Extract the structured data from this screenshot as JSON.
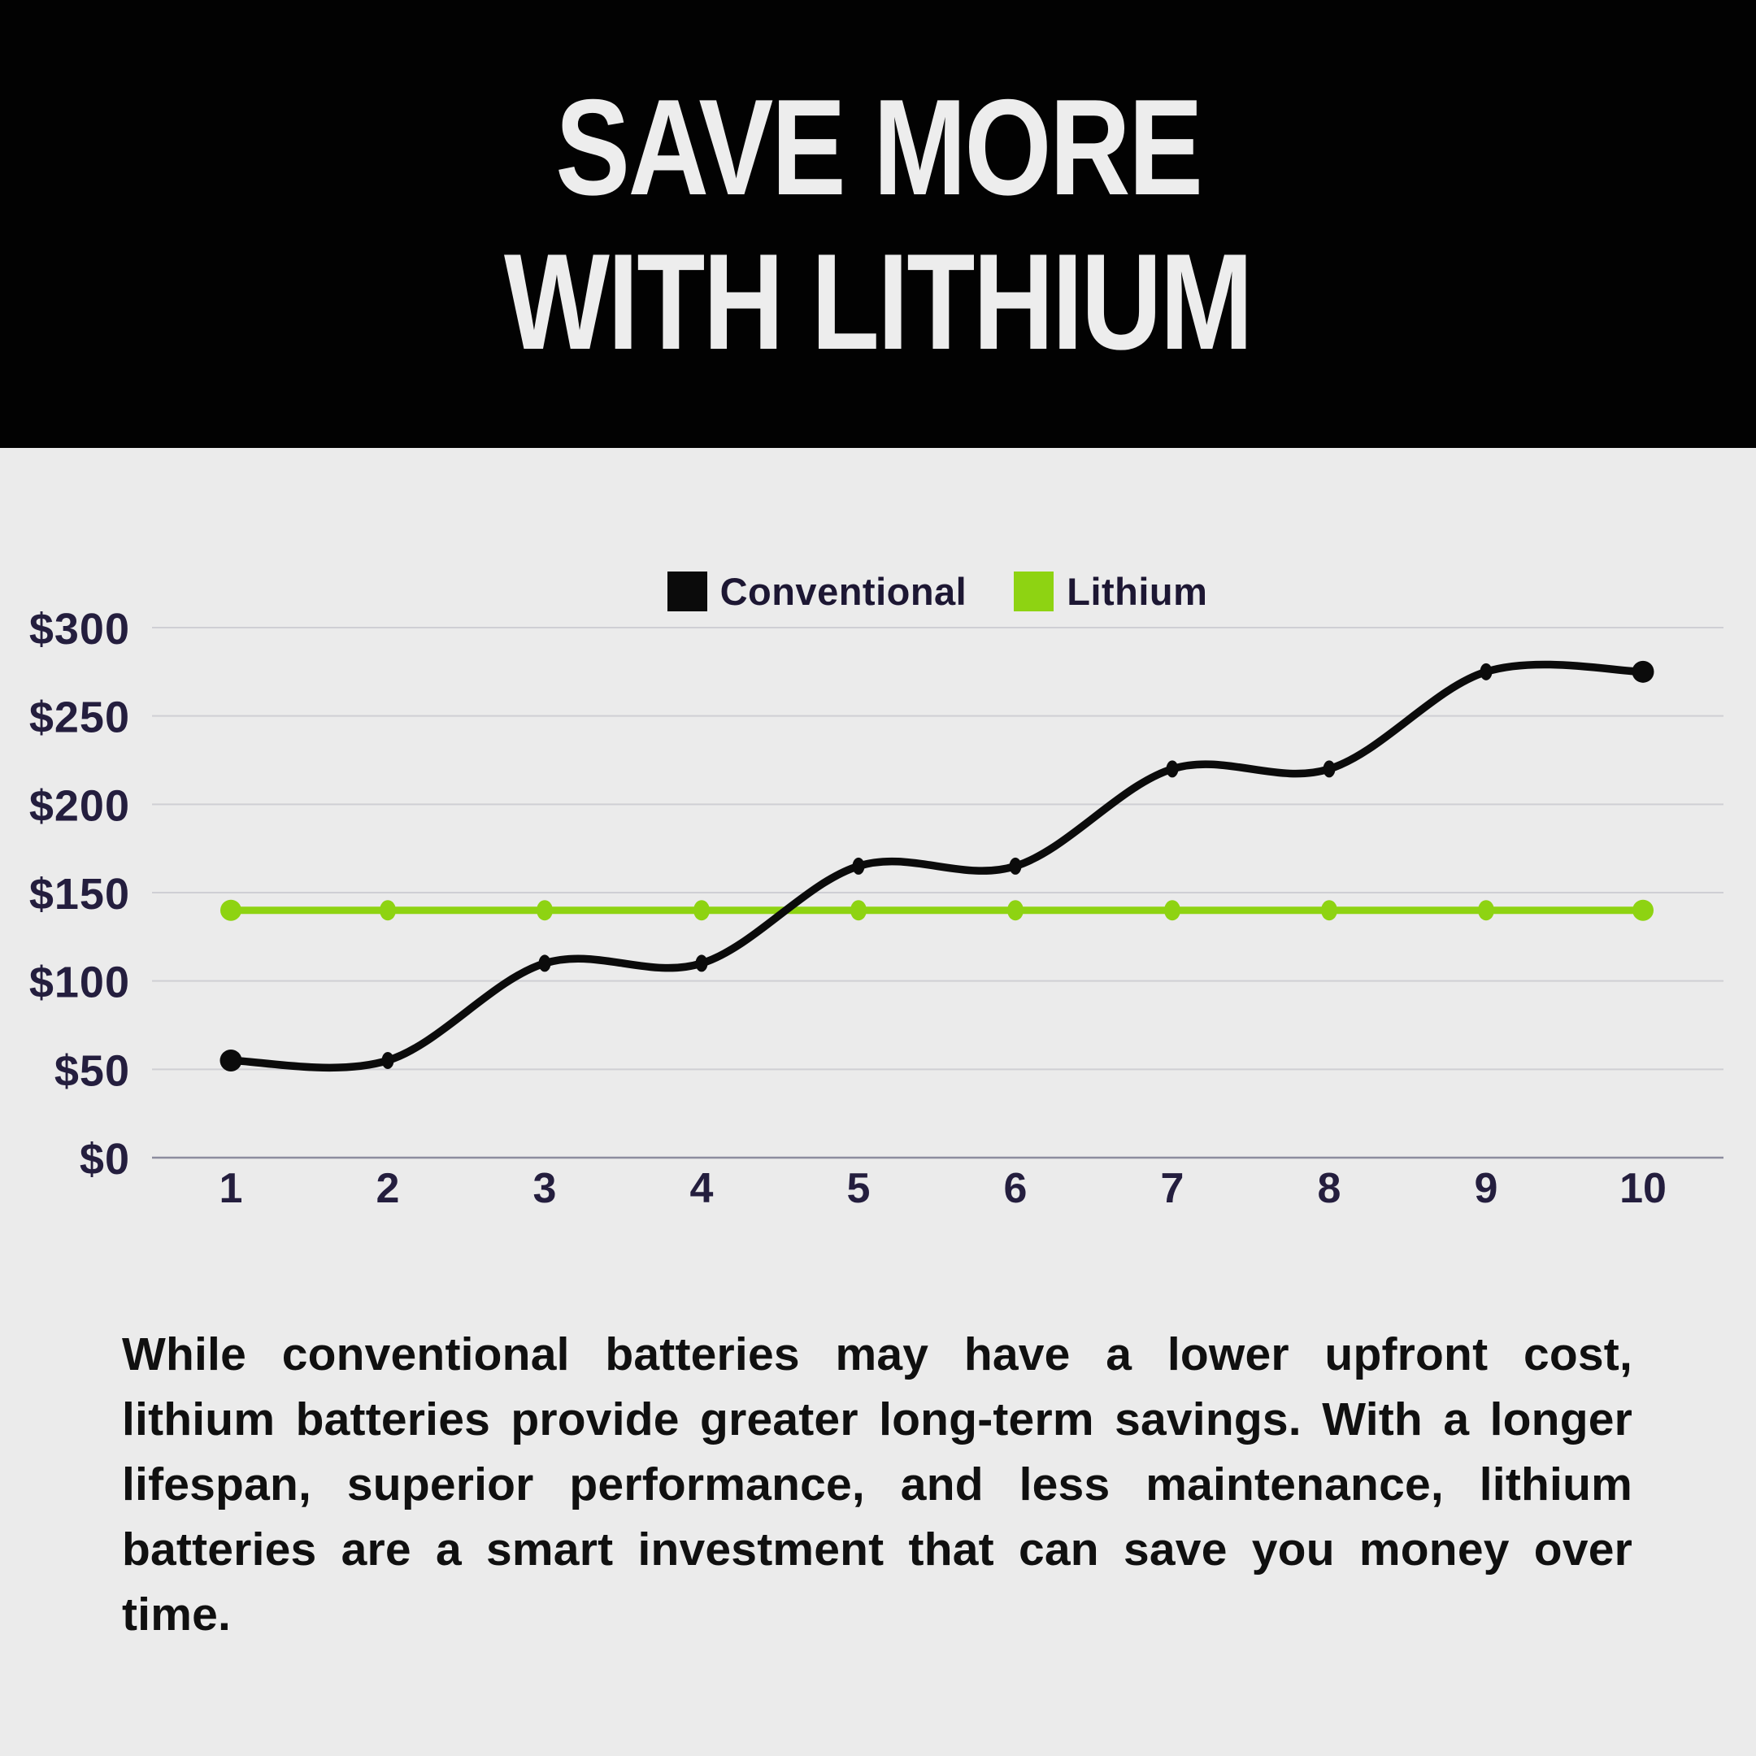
{
  "header": {
    "title_line1": "SAVE MORE",
    "title_line2": "WITH LITHIUM"
  },
  "chart_data": {
    "type": "line",
    "x": [
      1,
      2,
      3,
      4,
      5,
      6,
      7,
      8,
      9,
      10
    ],
    "series": [
      {
        "name": "Conventional",
        "color": "#0b0b0b",
        "values": [
          55,
          55,
          110,
          110,
          165,
          165,
          220,
          220,
          275,
          275
        ]
      },
      {
        "name": "Lithium",
        "color": "#8ed312",
        "values": [
          140,
          140,
          140,
          140,
          140,
          140,
          140,
          140,
          140,
          140
        ]
      }
    ],
    "y_ticks": [
      "$0",
      "$50",
      "$100",
      "$150",
      "$200",
      "$250",
      "$300"
    ],
    "ylim": [
      0,
      300
    ],
    "y_step": 50,
    "grid": true,
    "legend_position": "top-center",
    "grid_color": "#cfcfd4",
    "axis_color": "#8c8c9e"
  },
  "body_text": "While conventional batteries may have a lower upfront cost, lithium batteries provide greater long-term savings. With a longer lifespan, superior performance, and less maintenance, lithium batteries are a smart investment that can save you money over time."
}
